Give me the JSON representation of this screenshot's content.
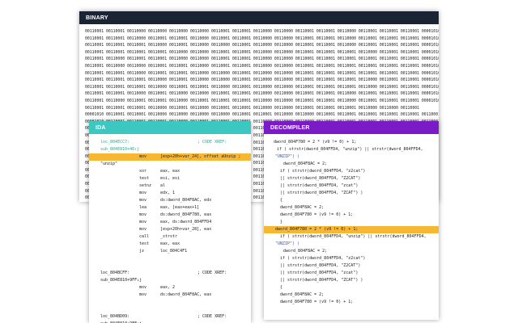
{
  "binary": {
    "title": "BINARY",
    "lines": [
      "00110001 00110001 00110000 00110000 00110000 00110000 00110001 00110001 00110000 00110000 00110001 00110001 00110000 00110001 00110001 00110001 00001010",
      "00110001 00110001 00110000 00110001 00110001 00110000 00110001 00110001 00110000 00110000 00110001 00110001 00110000 00110001 00110001 00110001 00001010",
      "00110001 00110001 00110001 00110000 00110001 00110000 00110000 00110001 00110000 00110000 00110001 00110001 00110000 00110001 00110001 00110001 00001010",
      "00110001 00110001 00110001 00110001 00110000 00110000 00110001 00110001 00110000 00110000 00110001 00110001 00110001 00110000 00110001 00110001 00001010",
      "00110001 00110000 00110001 00110001 00110000 00110000 00110001 00110001 00110000 00110000 00110001 00110001 00110001 00110001 00110001 00110001 00001010",
      "00110001 00110000 00110000 00110001 00110001 00110000 00110001 00110001 00110000 00110000 00110001 00110001 00110001 00110001 00110001 00110001 00001010",
      "00110001 00110001 00110000 00110001 00110001 00110000 00110000 00110001 00110000 00110000 00110001 00110001 00110001 00110001 00110001 00110001 00001010",
      "00110001 00110001 00110001 00110000 00110001 00110000 00110000 00110001 00110000 00110000 00110001 00110001 00110001 00110000 00110001 00110001 00001010",
      "00110001 00110001 00110001 00110000 00110001 00110001 00110000 00110001 00110000 00110000 00110001 00110001 00110001 00110000 00110001 00110001 00001010",
      "00110001 00110001 00110000 00110001 00110000 00110000 00110001 00110001 00110000 00110000 00110001 00110001 00110000 00110001 00110001 00110001 00001010",
      "00110001 00110000 00110001 00110001 00110000 00110001 00110001 00110001 00110000 00110000 00110001 00110001 00110000 00110001 00110001 00110001 00001010",
      "00110001 00110001 00110001 00110000 00110001 00110000 00110001 00110001 00110000 00110000 00110001 00110001 00110001 00110000 00110000 00110001",
      "00001010 00110001 00110001 00110000 00110000 00110000 00110000 00110001 00110001 00110000 00110000 00110001 00110001 00110001 00110001 00110001 00110001",
      "00001010 00110001 00110001 00110001 00110000 00110001 00110001 00110001 00110000 00110000 00110000 00110001 00110001 00110001 00110001 00110001 00110001",
      "00001010 00110001 00110001 00110000 00110000 00110000 00110001 00110001 00110001 00110000 00110000 00110001 00110001 00110001 00110000 00110001 00110001",
      "00001010 00110001 00110001 00110000 00110000 00110000 00110001 00110001 00110001 00110000 00110000 00110001 00110001 00110001 00110000 00110001 00110001",
      "00001010 00110001 00110001 00110001 00110000 00110001 00110001 00110001 00110001 00110000 00110000 00110001 00110001 00110001 00110000 00110001 00110001",
      "00001010 00110001 00110001 00110000 00110000 00110000 00110001 00110001 00110001 00110000 00110000 00110001 00110001 00110001 00110001 00110001 00110001",
      "00001010 00110001 00110001 00110001 00110000 00110001 00110001 00110001 00110001 00110000 00110000 00110001 00110001 00110001 00110000 00110001 00110001",
      "00001010 00110001 00110001 00110000 00110000 00110000 00110001 00110001 00110001 00110000 00110000 00110001 00110001 00110001 00110001 00110001 00110001",
      "00001010 00110001 00110001 00110001 00110000 00110001 00110001 00110001 00110001 00110000 00110000 00110001 00110001 00110001 00110000 00110001 00110001",
      "00001010 00110001 00110001 00110000 00110000 00110000 00110001 00110001 00110001 00110000 00110000 00110001 00110001 00110001 00110001 00110001 00110001",
      "00001010 00110001 00110001 00110001 00110000 00110001 00110001 00110001 00110001 00110000 00110000 00110001 00110001 00110001 00110000 00110001 00110001",
      "00001010 00110001 00110001 00110000 00110000 00110000 00110001 00110001 00110001 00110000 00110000 00110001 00110001 00110001 00110001 00110001 00110001",
      "00001010 00110001 00110001 00110001 00110000 00110001 00110001 00110001 00110001 00110000 00110000 00110001 00110001 00110001 00110000 00110001 00110001"
    ]
  },
  "ida": {
    "title": "IDA",
    "rows": [
      {
        "lbl": "loc_804ECC7:",
        "mn": "",
        "op": "",
        "cm": "; CODE XREF:",
        "teal": true
      },
      {
        "lbl": "  sub_804E810+46↑j",
        "mn": "",
        "op": "",
        "cm": "",
        "teal": true
      },
      {
        "lbl": "",
        "mn": "mov",
        "op": "[esp+20h+var_24], offset aUnzip ;",
        "cm": "",
        "hl": true
      },
      {
        "lbl": "  \"unzip\"",
        "mn": "",
        "op": "",
        "cm": ""
      },
      {
        "lbl": "",
        "mn": "xor",
        "op": "eax, eax",
        "cm": ""
      },
      {
        "lbl": "",
        "mn": "test",
        "op": "esi, esi",
        "cm": ""
      },
      {
        "lbl": "",
        "mn": "setnz",
        "op": "al",
        "cm": ""
      },
      {
        "lbl": "",
        "mn": "mov",
        "op": "edx, 1",
        "cm": ""
      },
      {
        "lbl": "",
        "mn": "mov",
        "op": "ds:dword_804F8AC, edx",
        "cm": ""
      },
      {
        "lbl": "",
        "mn": "lea",
        "op": "eax, [eax+eax+1]",
        "cm": ""
      },
      {
        "lbl": "",
        "mn": "mov",
        "op": "ds:dword_804F780, eax",
        "cm": ""
      },
      {
        "lbl": "",
        "mn": "mov",
        "op": "eax, ds:dword_804FFD4",
        "cm": ""
      },
      {
        "lbl": "",
        "mn": "mov",
        "op": "[esp+20h+var_28], eax",
        "cm": ""
      },
      {
        "lbl": "",
        "mn": "call",
        "op": "_strstr",
        "cm": ""
      },
      {
        "lbl": "",
        "mn": "test",
        "op": "eax, eax",
        "cm": ""
      },
      {
        "lbl": "",
        "mn": "jz",
        "op": "loc_804C4F1",
        "cm": ""
      },
      {
        "lbl": "",
        "mn": "",
        "op": "",
        "cm": ""
      },
      {
        "lbl": "",
        "mn": "",
        "op": "",
        "cm": ""
      },
      {
        "lbl": "loc_804BCFF:",
        "mn": "",
        "op": "",
        "cm": "; CODE XREF:"
      },
      {
        "lbl": "  sub_804E810+9FF↓j",
        "mn": "",
        "op": "",
        "cm": ""
      },
      {
        "lbl": "",
        "mn": "mov",
        "op": "eax, 2",
        "cm": ""
      },
      {
        "lbl": "",
        "mn": "mov",
        "op": "ds:dword_804F8AC, eax",
        "cm": ""
      },
      {
        "lbl": "",
        "mn": "",
        "op": "",
        "cm": ""
      },
      {
        "lbl": "",
        "mn": "",
        "op": "",
        "cm": ""
      },
      {
        "lbl": "loc_804BD09:",
        "mn": "",
        "op": "",
        "cm": "; CODE XREF:"
      },
      {
        "lbl": "  sub_804E810+9FE↓j",
        "mn": "",
        "op": "",
        "cm": ""
      }
    ]
  },
  "decompiler": {
    "title": "DECOMPILER",
    "rows": [
      {
        "t": "    dword_804F780 = 2 * (v9 != 0) + 1;",
        "i": 12
      },
      {
        "t": "    if ( strstr(dword_804FFD4, \"unzip\") || strstr(dword_804FFD4,",
        "i": 16
      },
      {
        "t": "\"UNZIP\") )",
        "i": 14,
        "blue": true
      },
      {
        "t": "dword_804F8AC = 2;",
        "i": 24
      },
      {
        "t": "if ( strstr(dword_804FFD4, \"z2cat\")",
        "i": 20
      },
      {
        "t": "  || strstr(dword_804FFD4, \"Z2CAT\")",
        "i": 20
      },
      {
        "t": "  || strstr(dword_804FFD4, \"zcat\")",
        "i": 20
      },
      {
        "t": "  || strstr(dword_804FFD4, \"ZCAT\") )",
        "i": 20
      },
      {
        "t": "{",
        "i": 20
      },
      {
        "t": "  dword_804F8AC = 2;",
        "i": 20
      },
      {
        "t": "  dword_804F780 = (v9 != 0) + 1;",
        "i": 20
      },
      {
        "t": "}",
        "i": 20
      },
      {
        "t": "dword_804F780 = 2 * (v9 != 0) + 1;",
        "i": 14,
        "hl": true
      },
      {
        "t": "if ( strstr(dword_804FFD4, \"unzip\") || strstr(dword_804FFD4,",
        "i": 20
      },
      {
        "t": "\"UNZIP\") )",
        "i": 14,
        "blue": true
      },
      {
        "t": "dword_804F8AC = 2;",
        "i": 24
      },
      {
        "t": "if ( strstr(dword_804FFD4, \"z2cat\")",
        "i": 20
      },
      {
        "t": "  || strstr(dword_804FFD4, \"Z2CAT\")",
        "i": 20
      },
      {
        "t": "  || strstr(dword_804FFD4, \"zcat\")",
        "i": 20
      },
      {
        "t": "  || strstr(dword_804FFD4, \"ZCAT\") )",
        "i": 20
      },
      {
        "t": "{",
        "i": 20
      },
      {
        "t": "  dword_804F8AC = 2;",
        "i": 20
      },
      {
        "t": "  dword_804F780 = (v9 != 0) + 1;",
        "i": 20
      }
    ]
  }
}
